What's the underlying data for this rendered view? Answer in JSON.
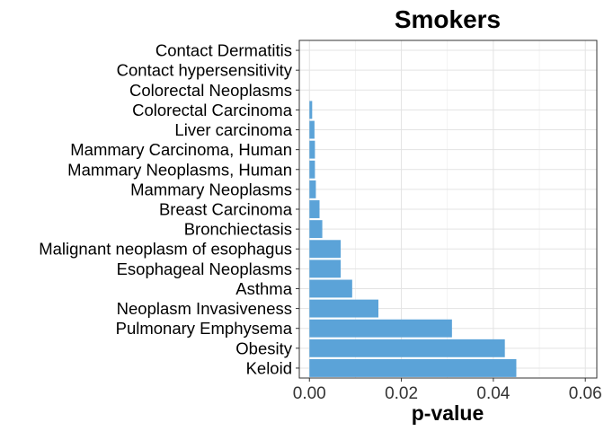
{
  "chart_data": {
    "type": "bar",
    "orientation": "horizontal",
    "title": "Smokers",
    "xlabel": "p-value",
    "ylabel": "",
    "categories": [
      "Contact Dermatitis",
      "Contact hypersensitivity",
      "Colorectal Neoplasms",
      "Colorectal Carcinoma",
      "Liver carcinoma",
      "Mammary Carcinoma, Human",
      "Mammary Neoplasms, Human",
      "Mammary Neoplasms",
      "Breast Carcinoma",
      "Bronchiectasis",
      "Malignant neoplasm of esophagus",
      "Esophageal Neoplasms",
      "Asthma",
      "Neoplasm Invasiveness",
      "Pulmonary Emphysema",
      "Obesity",
      "Keloid"
    ],
    "values": [
      0.0,
      0.0,
      0.0,
      0.0006,
      0.0011,
      0.0012,
      0.0012,
      0.0014,
      0.0022,
      0.0028,
      0.0068,
      0.0068,
      0.0093,
      0.015,
      0.031,
      0.0425,
      0.045
    ],
    "xlim": [
      -0.0022,
      0.0625
    ],
    "xticks": [
      0.0,
      0.02,
      0.04,
      0.06
    ],
    "xtick_labels": [
      "0.00",
      "0.02",
      "0.04",
      "0.06"
    ],
    "grid": true,
    "legend": "none",
    "bar_color": "#5BA3D8"
  }
}
